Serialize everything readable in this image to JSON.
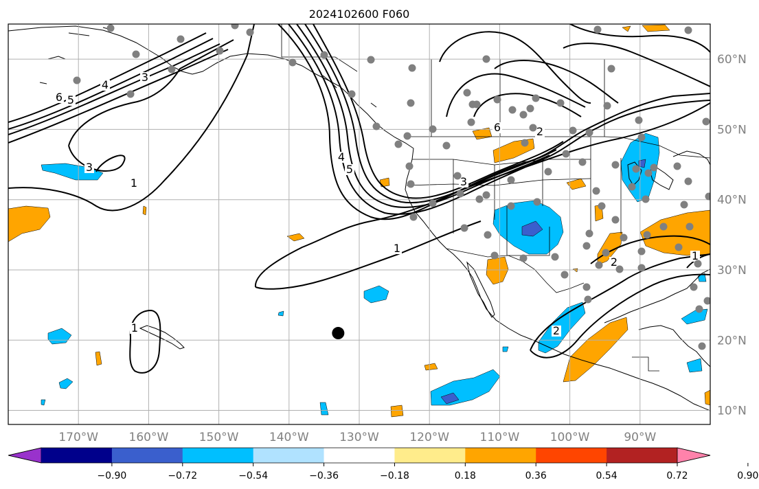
{
  "title": "2024102600 F060",
  "map": {
    "lon_range": [
      -180,
      -80
    ],
    "lat_range": [
      8,
      65
    ],
    "lat_ticks": [
      "60°N",
      "50°N",
      "40°N",
      "30°N",
      "20°N",
      "10°N"
    ],
    "lat_tick_values": [
      60,
      50,
      40,
      30,
      20,
      10
    ],
    "lon_ticks": [
      "170°W",
      "160°W",
      "150°W",
      "140°W",
      "130°W",
      "120°W",
      "110°W",
      "100°W",
      "90°W"
    ],
    "lon_tick_values": [
      -170,
      -160,
      -150,
      -140,
      -130,
      -120,
      -110,
      -100,
      -90
    ],
    "grid": true,
    "marker": {
      "lon": -133,
      "lat": 21
    }
  },
  "colorbar": {
    "ticks": [
      "−0.90",
      "−0.72",
      "−0.54",
      "−0.36",
      "−0.18",
      "0.18",
      "0.36",
      "0.54",
      "0.72",
      "0.90"
    ],
    "colors": [
      "#9932cc",
      "#00008b",
      "#3a5fcd",
      "#00bfff",
      "#b0e2ff",
      "#ffffff",
      "#ffec8b",
      "#ffa500",
      "#ff4500",
      "#b22222",
      "#ff82ab"
    ]
  },
  "contour_labels": [
    "6",
    "5",
    "4",
    "3",
    "3",
    "1",
    "4",
    "5",
    "3",
    "1",
    "6",
    "2",
    "1",
    "2",
    "1",
    "2"
  ],
  "colors": {
    "orange": "#ffa500",
    "blue": "#00bfff",
    "darkblue": "#3a5fcd",
    "station": "#808080"
  }
}
